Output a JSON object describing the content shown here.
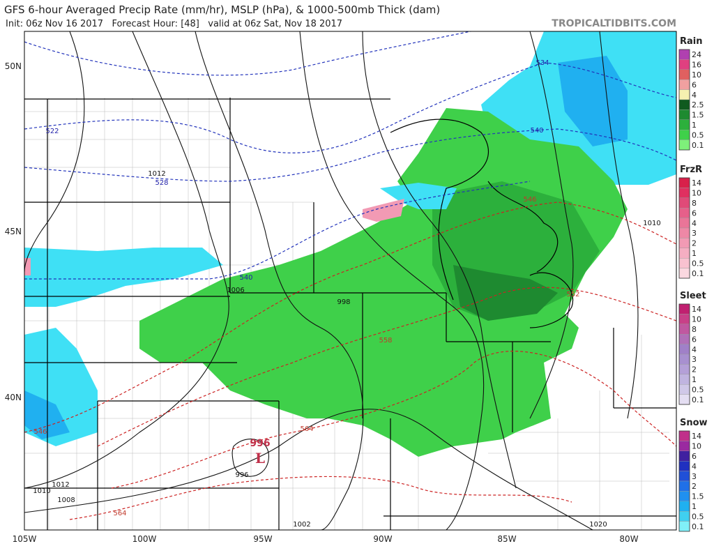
{
  "header": {
    "title": "GFS 6-hour Averaged Precip Rate (mm/hr), MSLP (hPa), & 1000-500mb Thick (dam)",
    "subtitle": "Init: 06z Nov 16 2017   Forecast Hour: [48]   valid at 06z Sat, Nov 18 2017",
    "source": "TROPICALTIDBITS.COM"
  },
  "axes": {
    "lat_labels": [
      "50N",
      "45N",
      "40N"
    ],
    "lon_labels": [
      "105W",
      "100W",
      "95W",
      "90W",
      "85W",
      "80W"
    ]
  },
  "legend": [
    {
      "title": "Rain",
      "labels": [
        "24",
        "16",
        "10",
        "6",
        "4",
        "2.5",
        "1.5",
        "1",
        "0.5",
        "0.1"
      ],
      "colors": [
        "#b040b0",
        "#e04080",
        "#e06060",
        "#f0a0a0",
        "#f5f0b0",
        "#0f5a1f",
        "#1e8a30",
        "#2cb03c",
        "#3fd04a",
        "#7ef07a"
      ]
    },
    {
      "title": "FrzR",
      "labels": [
        "14",
        "10",
        "8",
        "6",
        "4",
        "3",
        "2",
        "1",
        "0.5",
        "0.1"
      ],
      "colors": [
        "#d8204a",
        "#e03060",
        "#e04a78",
        "#e6608a",
        "#ea7598",
        "#ee88a6",
        "#f29ab4",
        "#f5aec2",
        "#f8c2d0",
        "#fbd8e0"
      ]
    },
    {
      "title": "Sleet",
      "labels": [
        "14",
        "10",
        "8",
        "6",
        "4",
        "3",
        "2",
        "1",
        "0.5",
        "0.1"
      ],
      "colors": [
        "#c02070",
        "#c84088",
        "#c058a0",
        "#b070b8",
        "#a080c8",
        "#a890d0",
        "#b4a0d8",
        "#c0b4e0",
        "#d0c8e8",
        "#e4def2"
      ]
    },
    {
      "title": "Snow",
      "labels": [
        "14",
        "10",
        "6",
        "4",
        "3",
        "2",
        "1.5",
        "1",
        "0.5",
        "0.1"
      ],
      "colors": [
        "#c0308a",
        "#9a2aa0",
        "#4020a0",
        "#2030c0",
        "#2050d8",
        "#2070e8",
        "#2090f0",
        "#20b0f0",
        "#40d0f0",
        "#80f0f8"
      ]
    }
  ],
  "contour_labels": {
    "isobars": [
      "1012",
      "1006",
      "998",
      "996",
      "1012",
      "1010",
      "1008",
      "1002",
      "1020",
      "1010"
    ],
    "thickness": [
      "522",
      "528",
      "534",
      "540",
      "540",
      "546",
      "546",
      "552",
      "558",
      "564",
      "564"
    ],
    "low_pressure": "996",
    "low_marker": "L"
  }
}
